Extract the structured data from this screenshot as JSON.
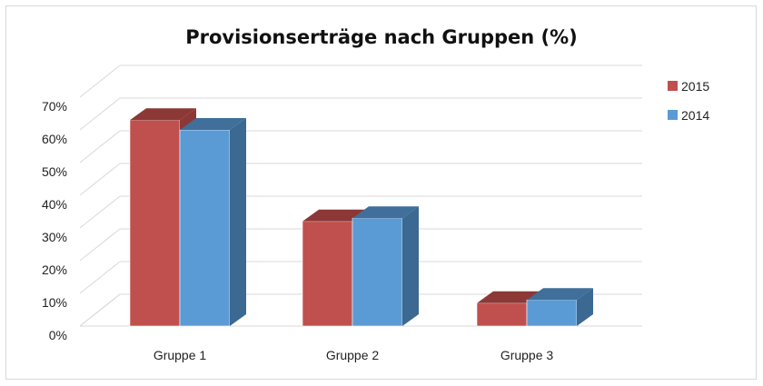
{
  "chart_data": {
    "type": "bar",
    "title": "Provisionserträge nach Gruppen (%)",
    "xlabel": "",
    "ylabel": "",
    "categories": [
      "Gruppe 1",
      "Gruppe 2",
      "Gruppe 3"
    ],
    "series": [
      {
        "name": "2015",
        "values": [
          63,
          32,
          7
        ],
        "color": "#c0504d",
        "top_color": "#8c3836",
        "side_color": "#8c3836"
      },
      {
        "name": "2014",
        "values": [
          60,
          33,
          8
        ],
        "color": "#5b9bd5",
        "top_color": "#3f6f9a",
        "side_color": "#3c6991"
      }
    ],
    "y_ticks": [
      "0%",
      "10%",
      "20%",
      "30%",
      "40%",
      "50%",
      "60%",
      "70%"
    ],
    "ylim": [
      0,
      70
    ],
    "grid": true,
    "legend_position": "right",
    "style": "3d-clustered-column"
  }
}
